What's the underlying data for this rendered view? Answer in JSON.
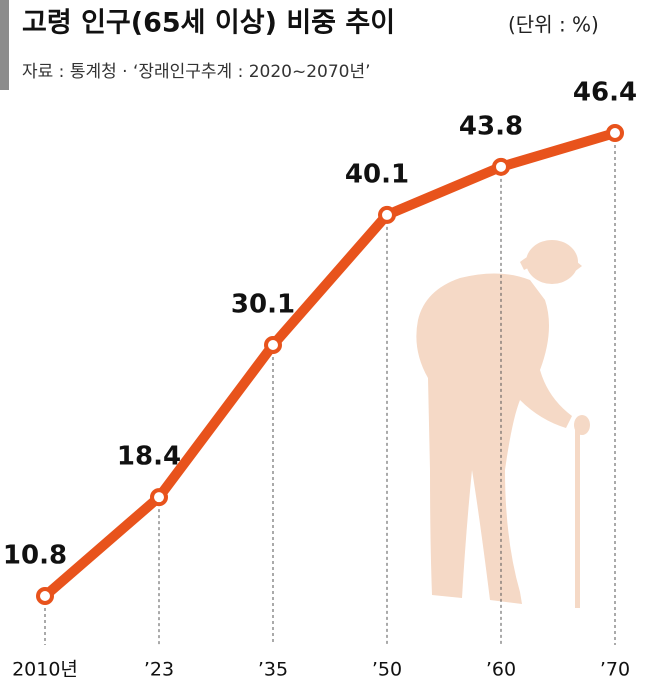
{
  "chart_data": {
    "type": "line",
    "title": "고령 인구(65세 이상) 비중 추이",
    "unit": "(단위 : %)",
    "subtitle": "자료 : 통계청 · ‘장래인구추계 : 2020~2070년’",
    "categories": [
      "2010년",
      "’23",
      "’35",
      "’50",
      "’60",
      "’70"
    ],
    "values": [
      10.8,
      18.4,
      30.1,
      40.1,
      43.8,
      46.4
    ],
    "color": "#e8531c"
  }
}
